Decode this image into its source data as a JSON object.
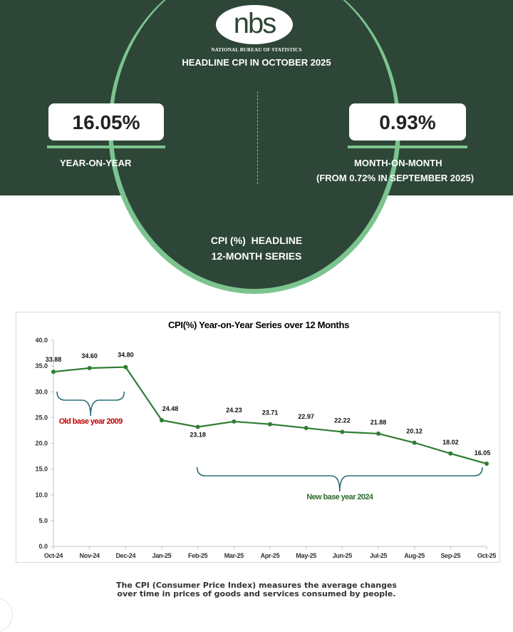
{
  "header": {
    "logo_text": "nbs",
    "org_name": "NATIONAL BUREAU OF STATISTICS",
    "headline": "HEADLINE CPI IN OCTOBER 2025"
  },
  "stats": {
    "yoy_value": "16.05%",
    "yoy_label": "YEAR-ON-YEAR",
    "mom_value": "0.93%",
    "mom_label": "MONTH-ON-MONTH",
    "mom_sub": "(FROM 0.72% IN SEPTEMBER 2025)"
  },
  "section_title": {
    "line1": "CPI (%)  HEADLINE",
    "line2": "12-MONTH SERIES"
  },
  "colors": {
    "header_bg": "#2d4637",
    "accent_green": "#7cc48f",
    "line": "#2e7d32",
    "bracket": "#2a6f7a",
    "old_base_text": "#c00000",
    "new_base_text": "#2e6b2e"
  },
  "chart_data": {
    "type": "line",
    "title": "CPI(%) Year-on-Year Series over 12 Months",
    "categories": [
      "Oct-24",
      "Nov-24",
      "Dec-24",
      "Jan-25",
      "Feb-25",
      "Mar-25",
      "Apr-25",
      "May-25",
      "Jun-25",
      "Jul-25",
      "Aug-25",
      "Sep-25",
      "Oct-25"
    ],
    "series": [
      {
        "values": [
          33.88,
          34.6,
          34.8,
          24.48,
          23.18,
          24.23,
          23.71,
          22.97,
          22.22,
          21.88,
          20.12,
          18.02,
          16.05
        ]
      }
    ],
    "data_labels": [
      "33.88",
      "34.60",
      "34.80",
      "24.48",
      "23.18",
      "24.23",
      "23.71",
      "22.97",
      "22.22",
      "21.88",
      "20.12",
      "18.02",
      "16.05"
    ],
    "ylim": [
      0,
      40
    ],
    "yticks": [
      "0.0",
      "5.0",
      "10.0",
      "15.0",
      "20.0",
      "25.0",
      "30.0",
      "35.0",
      "40.0"
    ],
    "grid": false,
    "annotations": [
      {
        "text": "Old base year 2009",
        "from": "Oct-24",
        "to": "Dec-24"
      },
      {
        "text": "New base year 2024",
        "from": "Feb-25",
        "to": "Oct-25"
      }
    ]
  },
  "footer": {
    "line1": "The CPI (Consumer Price Index) measures the average changes",
    "line2": "over time in prices of goods and services consumed by people."
  }
}
